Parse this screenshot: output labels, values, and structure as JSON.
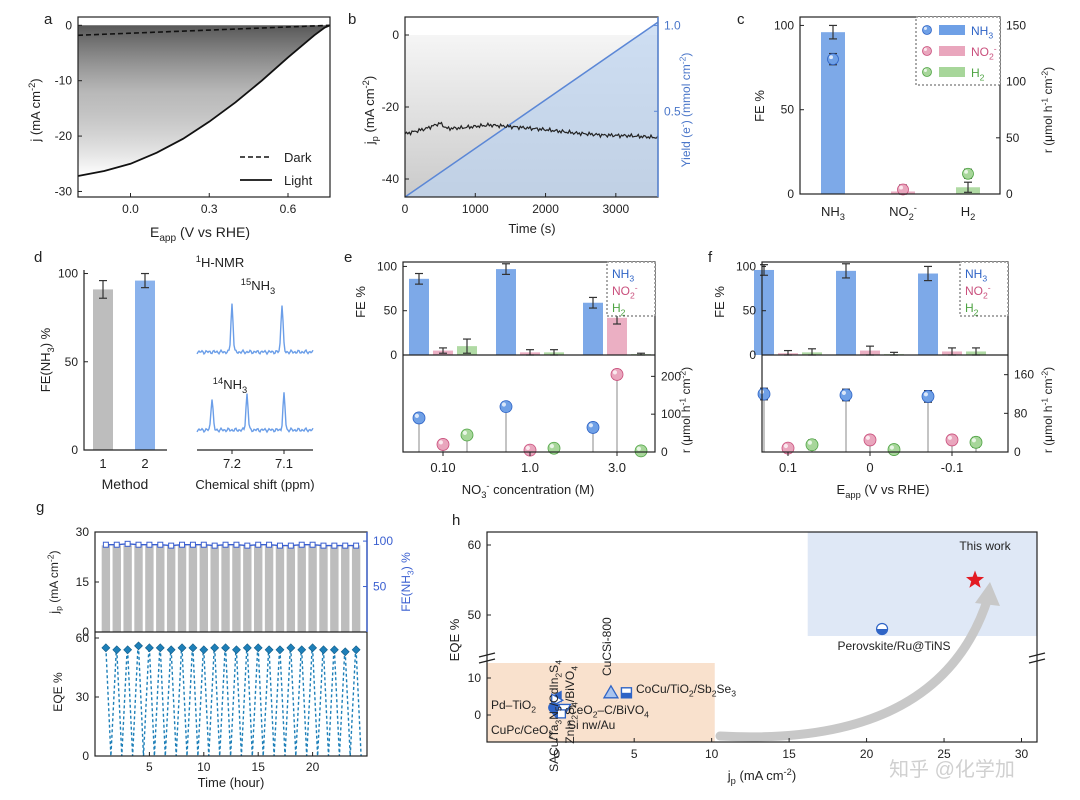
{
  "colors": {
    "nh3": "#6fa0e6",
    "nh3_dark": "#2f64c6",
    "no2": "#e9a6bd",
    "no2_dark": "#c94f7c",
    "h2": "#a7d69a",
    "h2_dark": "#4fa444",
    "gray": "#bdbdbd",
    "axis": "#222222",
    "eqe": "#1d7fb8",
    "star": "#e31b23",
    "shade_blue": "#dfe8f6",
    "shade_orange": "#f9e1cd"
  },
  "chart_data": [
    {
      "panel": "a",
      "type": "line",
      "xlabel": "E",
      "xlabel_sub": "app",
      "xlabel_rest": " (V vs RHE)",
      "ylabel": "j (mA cm",
      "ylabel_sup": "-2",
      "ylabel_end": ")",
      "xlim": [
        -0.2,
        0.76
      ],
      "ylim": [
        -31,
        1.5
      ],
      "xticks": [
        "0.0",
        "0.3",
        "0.6"
      ],
      "xtick_values": [
        0,
        0.3,
        0.6
      ],
      "yticks": [
        "0",
        "-10",
        "-20",
        "-30"
      ],
      "ytick_values": [
        0,
        -10,
        -20,
        -30
      ],
      "series": [
        {
          "name": "Dark",
          "style": "dashed",
          "x": [
            -0.2,
            0.76
          ],
          "y": [
            -1.8,
            0.0
          ]
        },
        {
          "name": "Light",
          "style": "solid",
          "x": [
            -0.2,
            -0.1,
            0.0,
            0.1,
            0.2,
            0.3,
            0.4,
            0.5,
            0.6,
            0.7,
            0.74,
            0.76
          ],
          "y": [
            -27.2,
            -26.3,
            -25.0,
            -23.0,
            -20.5,
            -17.4,
            -13.9,
            -10.0,
            -5.8,
            -1.8,
            -0.4,
            0.0
          ]
        }
      ]
    },
    {
      "panel": "b",
      "type": "line",
      "xlabel": "Time (s)",
      "ylabel": "j",
      "ylabel_sub": "p",
      "ylabel_rest": " (mA cm",
      "ylabel_sup": "-2",
      "ylabel_end": ")",
      "y2label": "Yield (e",
      "y2label_sup": "-",
      "y2label_rest": ") (mmol cm",
      "y2label_sup2": "-2",
      "y2label_end": ")",
      "xlim": [
        0,
        3600
      ],
      "ylim": [
        -45,
        5
      ],
      "y2lim": [
        0,
        1.05
      ],
      "xticks": [
        "0",
        "1000",
        "2000",
        "3000"
      ],
      "xtick_values": [
        0,
        1000,
        2000,
        3000
      ],
      "yticks": [
        "0",
        "-20",
        "-40"
      ],
      "ytick_values": [
        0,
        -20,
        -40
      ],
      "y2ticks": [
        "0.5",
        "1.0"
      ],
      "y2tick_values": [
        0.5,
        1.0
      ],
      "series": [
        {
          "name": "Photocurrent",
          "x": [
            0,
            300,
            500,
            600,
            800,
            1200,
            1600,
            2000,
            2400,
            2800,
            3200,
            3600
          ],
          "y": [
            -27.5,
            -26.0,
            -24.5,
            -26.0,
            -25.8,
            -25.0,
            -25.6,
            -26.3,
            -27.2,
            -27.8,
            -28.0,
            -28.5
          ]
        },
        {
          "name": "Yield",
          "axis": "y2",
          "x": [
            0,
            3600
          ],
          "y": [
            0,
            1.02
          ]
        }
      ]
    },
    {
      "panel": "c",
      "type": "bar",
      "categories": [
        "NH3",
        "NO2-",
        "H2"
      ],
      "category_labels": [
        {
          "main": "NH",
          "sub": "3",
          "sup": ""
        },
        {
          "main": "NO",
          "sub": "2",
          "sup": "-"
        },
        {
          "main": "H",
          "sub": "2",
          "sup": ""
        }
      ],
      "ylabel": "FE %",
      "y2label": "r (μmol h",
      "y2label_sup": "-1",
      "y2label_rest": " cm",
      "y2label_sup2": "-2",
      "y2label_end": ")",
      "ylim": [
        0,
        105
      ],
      "y2lim": [
        0,
        157.5
      ],
      "yticks": [
        "0",
        "50",
        "100"
      ],
      "ytick_values": [
        0,
        50,
        100
      ],
      "y2ticks": [
        "0",
        "50",
        "100",
        "150"
      ],
      "y2tick_values": [
        0,
        50,
        100,
        150
      ],
      "fe": [
        96,
        1.5,
        4
      ],
      "fe_err": [
        4,
        1.5,
        3
      ],
      "rate": [
        120,
        4,
        18
      ],
      "rate_err": [
        5,
        4,
        4
      ],
      "legend": [
        {
          "main": "NH",
          "sub": "3",
          "sup": ""
        },
        {
          "main": "NO",
          "sub": "2",
          "sup": "-"
        },
        {
          "main": "H",
          "sub": "2",
          "sup": ""
        }
      ]
    },
    {
      "panel": "d",
      "type": "bar",
      "categories": [
        "1",
        "2"
      ],
      "xlabel": "Method",
      "ylabel": "FE(NH",
      "ylabel_sub": "3",
      "ylabel_end": ") %",
      "ylim": [
        0,
        102
      ],
      "yticks": [
        "0",
        "50",
        "100"
      ],
      "ytick_values": [
        0,
        50,
        100
      ],
      "values": [
        91,
        96
      ],
      "errors": [
        5,
        4
      ],
      "nmr_title": "H-NMR",
      "nmr_title_sup": "1",
      "nmr_label_15": "NH",
      "nmr_label_15_sup": "15",
      "nmr_label_15_sub": "3",
      "nmr_label_14": "NH",
      "nmr_label_14_sup": "14",
      "nmr_label_14_sub": "3",
      "nmr_xlabel": "Chemical shift (ppm)",
      "nmr_xticks": [
        "7.2",
        "7.1"
      ]
    },
    {
      "panel": "e",
      "type": "bar",
      "categories": [
        "0.10",
        "1.0",
        "3.0"
      ],
      "xlabel": "NO",
      "xlabel_sub": "3",
      "xlabel_sup": "-",
      "xlabel_rest": " concentration (M)",
      "ylabel": "FE %",
      "ylim": [
        0,
        105
      ],
      "yticks": [
        "0",
        "50",
        "100"
      ],
      "ytick_values": [
        0,
        50,
        100
      ],
      "rlim": [
        0,
        230
      ],
      "rticks": [
        "0",
        "100",
        "200"
      ],
      "rtick_values": [
        0,
        100,
        200
      ],
      "fe": {
        "NH3": [
          86,
          97,
          59
        ],
        "NO2-": [
          5,
          3,
          42
        ],
        "H2": [
          10,
          3,
          1
        ]
      },
      "fe_err": {
        "NH3": [
          6,
          6,
          6
        ],
        "NO2-": [
          3,
          3,
          7
        ],
        "H2": [
          8,
          3,
          1
        ]
      },
      "rate": {
        "NH3": [
          90,
          120,
          65
        ],
        "NO2-": [
          20,
          5,
          205
        ],
        "H2": [
          45,
          10,
          3
        ]
      },
      "rate_err": {
        "NH3": [
          12,
          12,
          12
        ],
        "NO2-": [
          8,
          6,
          12
        ],
        "H2": [
          10,
          8,
          3
        ]
      },
      "legend": [
        {
          "main": "NH",
          "sub": "3",
          "sup": ""
        },
        {
          "main": "NO",
          "sub": "2",
          "sup": "-"
        },
        {
          "main": "H",
          "sub": "2",
          "sup": ""
        }
      ]
    },
    {
      "panel": "f",
      "type": "bar",
      "categories": [
        "0.1",
        "0",
        "-0.1"
      ],
      "xlabel": "E",
      "xlabel_sub": "app",
      "xlabel_rest": " (V vs RHE)",
      "ylabel": "FE %",
      "ylim": [
        0,
        105
      ],
      "yticks": [
        "0",
        "50",
        "100"
      ],
      "ytick_values": [
        0,
        50,
        100
      ],
      "y2label": "r (μmol h",
      "y2label_sup": "-1",
      "y2label_rest": " cm",
      "y2label_sup2": "-2",
      "y2label_end": ")",
      "rlim": [
        0,
        180
      ],
      "rticks": [
        "0",
        "80",
        "160"
      ],
      "rtick_values": [
        0,
        80,
        160
      ],
      "fe": {
        "NH3": [
          96,
          95,
          92
        ],
        "NO2-": [
          2,
          5,
          4
        ],
        "H2": [
          3,
          1,
          4
        ]
      },
      "fe_err": {
        "NH3": [
          6,
          8,
          8
        ],
        "NO2-": [
          3,
          5,
          4
        ],
        "H2": [
          4,
          2,
          4
        ]
      },
      "rate": {
        "NH3": [
          120,
          118,
          115
        ],
        "NO2-": [
          8,
          25,
          25
        ],
        "H2": [
          15,
          5,
          20
        ]
      },
      "rate_err": {
        "NH3": [
          12,
          12,
          12
        ],
        "NO2-": [
          6,
          8,
          8
        ],
        "H2": [
          10,
          4,
          10
        ]
      },
      "legend": [
        {
          "main": "NH",
          "sub": "3",
          "sup": ""
        },
        {
          "main": "NO",
          "sub": "2",
          "sup": "-"
        },
        {
          "main": "H",
          "sub": "2",
          "sup": ""
        }
      ]
    },
    {
      "panel": "g",
      "type": "bar",
      "xlabel": "Time (hour)",
      "ylabel": "j",
      "ylabel_sub": "p",
      "ylabel_rest": " (mA cm",
      "ylabel_sup": "-2",
      "ylabel_end": ")",
      "y2label": "FE(NH",
      "y2label_sub": "3",
      "y2label_end": ") %",
      "ylabel_bottom": "EQE %",
      "xlim": [
        0,
        25
      ],
      "xticks": [
        "5",
        "10",
        "15",
        "20"
      ],
      "xtick_values": [
        5,
        10,
        15,
        20
      ],
      "ylim_top": [
        0,
        30
      ],
      "yticks_top": [
        "0",
        "15",
        "30"
      ],
      "ytick_values_top": [
        0,
        15,
        30
      ],
      "y2lim_top": [
        0,
        110
      ],
      "y2ticks_top": [
        "50",
        "100"
      ],
      "y2tick_values_top": [
        50,
        100
      ],
      "ylim_bottom": [
        0,
        60
      ],
      "yticks_bottom": [
        "0",
        "30",
        "60"
      ],
      "ytick_values_bottom": [
        0,
        30,
        60
      ],
      "hours": [
        1,
        2,
        3,
        4,
        5,
        6,
        7,
        8,
        9,
        10,
        11,
        12,
        13,
        14,
        15,
        16,
        17,
        18,
        19,
        20,
        21,
        22,
        23,
        24
      ],
      "jp": [
        26,
        26,
        26,
        26,
        26,
        26,
        26,
        26,
        26,
        26,
        26,
        26,
        26,
        26,
        26,
        26,
        26,
        26,
        26,
        26,
        26,
        26,
        26,
        26
      ],
      "fe": [
        96,
        96,
        97,
        96,
        96,
        96,
        95,
        96,
        96,
        96,
        95,
        96,
        96,
        95,
        96,
        96,
        95,
        95,
        96,
        96,
        95,
        95,
        95,
        95
      ],
      "eqe": [
        55,
        54,
        54,
        56,
        55,
        55,
        54,
        55,
        55,
        54,
        55,
        55,
        54,
        55,
        55,
        54,
        54,
        55,
        54,
        55,
        54,
        54,
        53,
        54
      ]
    },
    {
      "panel": "h",
      "type": "scatter",
      "xlabel": "j",
      "xlabel_sub": "p",
      "xlabel_rest": " (mA cm",
      "xlabel_sup": "-2",
      "xlabel_end": ")",
      "ylabel": "EQE %",
      "xlim": [
        -4.5,
        31
      ],
      "xticks": [
        "0",
        "5",
        "10",
        "15",
        "20",
        "25",
        "30"
      ],
      "xtick_values": [
        0,
        5,
        10,
        15,
        20,
        25,
        30
      ],
      "yticks_low": [
        "0",
        "10"
      ],
      "ytick_values_low": [
        0,
        10
      ],
      "yticks_high": [
        "50",
        "60"
      ],
      "ytick_values_high": [
        50,
        60
      ],
      "points": [
        {
          "label": "SACu/Ta3N5/CdIn2S4",
          "x": 0.0,
          "y": 5,
          "marker": "tri-left"
        },
        {
          "label": "ZnIn2S4/BiVO4",
          "x": 0.0,
          "y": 4,
          "marker": "tri-right"
        },
        {
          "label": "CuCSi-800",
          "x": 3.5,
          "y": 6,
          "marker": "tri-up"
        },
        {
          "label": "CoCu/TiO2/Sb2Se3",
          "x": 4.5,
          "y": 6,
          "marker": "square"
        },
        {
          "label": "Pd–TiO2",
          "x": -0.2,
          "y": 2,
          "marker": "circle"
        },
        {
          "label": "CeO2–C/BiVO4",
          "x": 0.5,
          "y": 1.5,
          "marker": "tri-down"
        },
        {
          "label": "CuPc/CeO2",
          "x": 0.0,
          "y": 0.5,
          "marker": "diamond"
        },
        {
          "label": "Si nw/Au",
          "x": 0.3,
          "y": 0.3,
          "marker": "hex"
        },
        {
          "label": "Perovskite/Ru@TiNS",
          "x": 21.0,
          "y": 48,
          "marker": "half-circle"
        },
        {
          "label": "This work",
          "x": 27.0,
          "y": 55,
          "marker": "star"
        }
      ]
    }
  ],
  "panel_letters": [
    "a",
    "b",
    "c",
    "d",
    "e",
    "f",
    "g",
    "h"
  ],
  "watermark": "知乎 @化学加",
  "legend_a": [
    "Dark",
    "Light"
  ]
}
